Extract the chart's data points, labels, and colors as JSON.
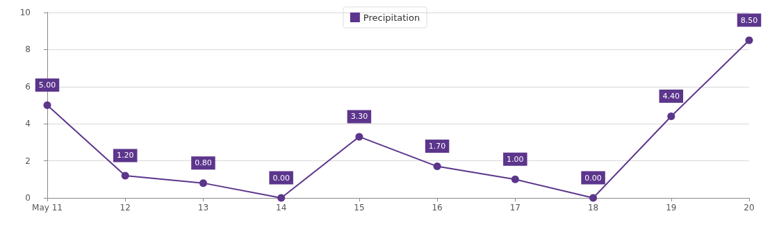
{
  "chart_data": {
    "type": "line",
    "categories": [
      "May 11",
      "12",
      "13",
      "14",
      "15",
      "16",
      "17",
      "18",
      "19",
      "20"
    ],
    "series": [
      {
        "name": "Precipitation",
        "color": "#5c358c",
        "values": [
          5,
          1.2,
          0.8,
          0,
          3.3,
          1.7,
          1,
          0,
          4.4,
          8.5
        ],
        "value_labels": [
          "5.00",
          "1.20",
          "0.80",
          "0.00",
          "3.30",
          "1.70",
          "1.00",
          "0.00",
          "4.40",
          "8.50"
        ]
      }
    ],
    "ylim": [
      0,
      10
    ],
    "yticks": [
      0,
      2,
      4,
      6,
      8,
      10
    ],
    "grid": "y",
    "legend": "top",
    "marker": "circle",
    "line_style": "solid"
  }
}
